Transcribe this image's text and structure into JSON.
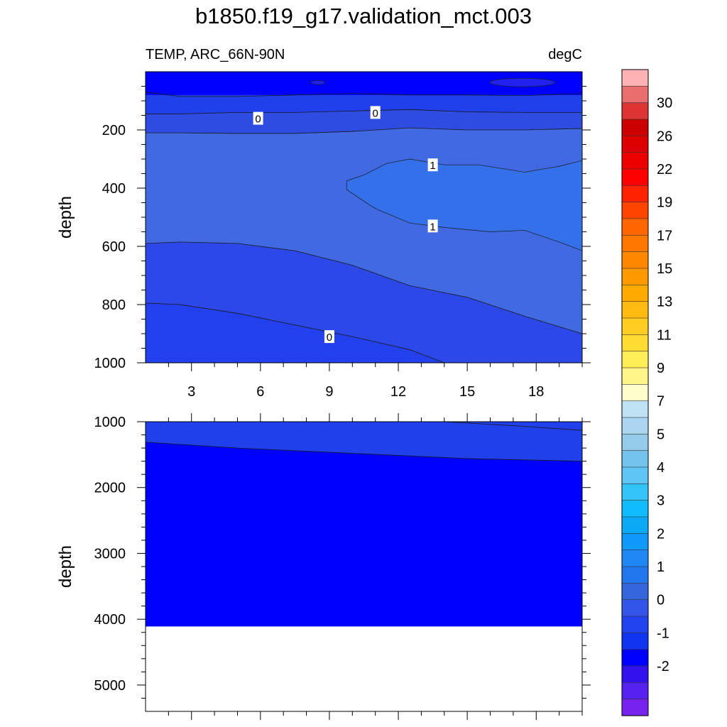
{
  "chart_data": {
    "type": "contour",
    "title": "b1850.f19_g17.validation_mct.003",
    "variable_label": "TEMP, ARC_66N-90N",
    "units_label": "degC",
    "x": {
      "range": [
        1,
        20
      ],
      "tick_labels": [
        "3",
        "6",
        "9",
        "12",
        "15",
        "18"
      ],
      "tick_values": [
        3,
        6,
        9,
        12,
        15,
        18
      ]
    },
    "panels": [
      {
        "name": "upper",
        "ylabel": "depth",
        "ylim": [
          0,
          1000
        ],
        "tick_values": [
          200,
          400,
          600,
          800,
          1000
        ],
        "tick_labels": [
          "200",
          "400",
          "600",
          "800",
          "1000"
        ],
        "regions": [
          {
            "level": "-1.0",
            "color": "#0000ff",
            "top": [
              [
                1,
                0
              ],
              [
                20,
                0
              ]
            ],
            "bottom": null
          },
          {
            "level": "-0.5",
            "color": "#2040ec",
            "top": [
              [
                1,
                80
              ]
            ],
            "bottom": null
          },
          {
            "level": "0.0",
            "color": "#2f4ce2",
            "top": [
              [
                1,
                145
              ],
              [
                2.5,
                145
              ],
              [
                5,
                140
              ],
              [
                7.5,
                140
              ],
              [
                10,
                135
              ],
              [
                12.5,
                130
              ],
              [
                15,
                138
              ],
              [
                17.5,
                140
              ],
              [
                20,
                140
              ]
            ],
            "bottom": null
          },
          {
            "level": "0.5",
            "color": "#4169e1",
            "top": [
              [
                1,
                210
              ],
              [
                2.5,
                210
              ],
              [
                5,
                212
              ],
              [
                7.5,
                212
              ],
              [
                10,
                205
              ],
              [
                12.5,
                193
              ],
              [
                15,
                200
              ],
              [
                17.5,
                200
              ],
              [
                20,
                195
              ]
            ],
            "bottom": null
          }
        ],
        "contour_labels": [
          {
            "text": "0",
            "x": 5.9,
            "depth": 160
          },
          {
            "text": "0",
            "x": 11.0,
            "depth": 140
          },
          {
            "text": "1",
            "x": 13.5,
            "depth": 320
          },
          {
            "text": "1",
            "x": 13.5,
            "depth": 530
          },
          {
            "text": "0",
            "x": 9.0,
            "depth": 910
          }
        ]
      },
      {
        "name": "lower",
        "ylabel": "depth",
        "ylim": [
          1000,
          5400
        ],
        "tick_values": [
          1000,
          2000,
          3000,
          4000,
          5000
        ],
        "tick_labels": [
          "1000",
          "2000",
          "3000",
          "4000",
          "5000"
        ],
        "bottom_depth": 4110
      }
    ],
    "colorbar": {
      "labels": [
        "30",
        "26",
        "22",
        "19",
        "17",
        "15",
        "13",
        "11",
        "9",
        "7",
        "5",
        "4",
        "3",
        "2",
        "1",
        "0",
        "-1",
        "-2"
      ],
      "colors": [
        "#ffb3b3",
        "#ea6e6e",
        "#dd3333",
        "#cc0000",
        "#dd0000",
        "#ee0000",
        "#ff0000",
        "#ff2200",
        "#ff4400",
        "#ff6600",
        "#ff7700",
        "#ff8800",
        "#ff9900",
        "#ffaa00",
        "#ffbb11",
        "#ffcc22",
        "#ffdd33",
        "#ffee55",
        "#fff588",
        "#ffffcc",
        "#bfe3f4",
        "#aad7ef",
        "#94cbea",
        "#74c3ee",
        "#5ec5f4",
        "#33c4fa",
        "#11bbff",
        "#0aaaf7",
        "#1099f8",
        "#2088f5",
        "#2277ee",
        "#3366dd",
        "#3355e9",
        "#2244ee",
        "#1133f2",
        "#0000ff",
        "#3311ee",
        "#5522ee",
        "#7722ee"
      ]
    }
  }
}
